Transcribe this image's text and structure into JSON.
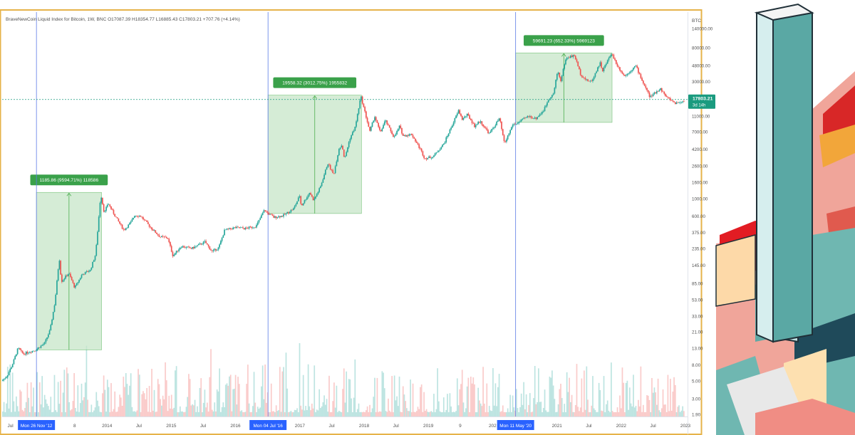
{
  "header": {
    "text": "BraveNewCoin Liquid Index for Bitcoin, 1W, BNC  O17087.39  H18354.77  L16885.43  C17803.21  +707.76 (+4.14%)"
  },
  "price_axis": {
    "currency": "BTC",
    "ticks": [
      "140000.00",
      "80000.00",
      "48000.00",
      "30000.00",
      "11000.00",
      "7000.00",
      "4200.00",
      "2600.00",
      "1600.00",
      "1000.00",
      "600.00",
      "375.00",
      "235.00",
      "145.00",
      "85.00",
      "53.00",
      "33.00",
      "21.00",
      "13.00",
      "8.00",
      "5.00",
      "3.00",
      "1.90"
    ],
    "last_price": "17803.21",
    "countdown": "3d 14h"
  },
  "time_axis": {
    "labels": [
      "Jul",
      "8",
      "2014",
      "Jul",
      "2015",
      "Jul",
      "2016",
      "2017",
      "Jul",
      "2018",
      "Jul",
      "2019",
      "9",
      "202",
      "2021",
      "Jul",
      "2022",
      "Jul",
      "2023"
    ],
    "highlights": [
      "Mon 26 Nov '12",
      "Mon 04 Jul '16",
      "Mon 11 May '20"
    ]
  },
  "measurements": [
    {
      "label": "1185.86 (9594.71%) 118586",
      "from": 12.36,
      "to": 1198.22
    },
    {
      "label": "19558.32 (3012.75%) 1955832",
      "from": 649.18,
      "to": 20207.5
    },
    {
      "label": "59691.23 (652.33%) 5969123",
      "from": 9150.49,
      "to": 68841.72
    }
  ],
  "colors": {
    "up": "#26a69a",
    "down": "#ef5350",
    "measure_fill": "#c8e6c9",
    "measure_stroke": "#4caf50",
    "halving_line": "#5b7be6",
    "highlight_bg": "#2962ff",
    "frame": "#e6b34a",
    "last_price_bg": "#1a9b7f"
  },
  "chart_data": {
    "type": "candlestick",
    "title": "BraveNewCoin Liquid Index for Bitcoin, 1W, BNC",
    "y_scale": "log",
    "ylim": [
      1.9,
      140000
    ],
    "x_range": [
      "2012-05-15",
      "2023-01-01"
    ],
    "last_bar": {
      "open": 17087.39,
      "high": 18354.77,
      "low": 16885.43,
      "close": 17803.21,
      "change": 707.76,
      "change_pct": 4.14
    },
    "price_path": [
      [
        "2012-05-15",
        5.0
      ],
      [
        "2012-06-15",
        5.8
      ],
      [
        "2012-07-15",
        8.0
      ],
      [
        "2012-08-17",
        13.0
      ],
      [
        "2012-09-15",
        11.0
      ],
      [
        "2012-11-26",
        12.4
      ],
      [
        "2013-01-15",
        15.0
      ],
      [
        "2013-02-15",
        22.0
      ],
      [
        "2013-03-15",
        50.0
      ],
      [
        "2013-04-08",
        180.0
      ],
      [
        "2013-04-20",
        90.0
      ],
      [
        "2013-06-01",
        115.0
      ],
      [
        "2013-07-05",
        75.0
      ],
      [
        "2013-08-15",
        110.0
      ],
      [
        "2013-10-01",
        125.0
      ],
      [
        "2013-11-01",
        200.0
      ],
      [
        "2013-11-30",
        1150.0
      ],
      [
        "2013-12-20",
        650.0
      ],
      [
        "2014-01-10",
        880.0
      ],
      [
        "2014-02-20",
        600.0
      ],
      [
        "2014-04-10",
        400.0
      ],
      [
        "2014-05-20",
        500.0
      ],
      [
        "2014-06-10",
        620.0
      ],
      [
        "2014-07-15",
        600.0
      ],
      [
        "2014-09-15",
        420.0
      ],
      [
        "2014-11-01",
        330.0
      ],
      [
        "2014-12-15",
        320.0
      ],
      [
        "2015-01-14",
        190.0
      ],
      [
        "2015-03-01",
        250.0
      ],
      [
        "2015-05-01",
        235.0
      ],
      [
        "2015-07-15",
        285.0
      ],
      [
        "2015-08-24",
        215.0
      ],
      [
        "2015-10-01",
        240.0
      ],
      [
        "2015-11-04",
        400.0
      ],
      [
        "2016-01-01",
        430.0
      ],
      [
        "2016-03-01",
        420.0
      ],
      [
        "2016-05-01",
        450.0
      ],
      [
        "2016-06-17",
        720.0
      ],
      [
        "2016-07-04",
        660.0
      ],
      [
        "2016-08-10",
        580.0
      ],
      [
        "2016-10-01",
        610.0
      ],
      [
        "2016-12-01",
        750.0
      ],
      [
        "2017-01-04",
        1100.0
      ],
      [
        "2017-01-12",
        800.0
      ],
      [
        "2017-03-01",
        1200.0
      ],
      [
        "2017-03-24",
        950.0
      ],
      [
        "2017-05-01",
        1400.0
      ],
      [
        "2017-06-12",
        2800.0
      ],
      [
        "2017-07-15",
        2000.0
      ],
      [
        "2017-08-15",
        4300.0
      ],
      [
        "2017-09-01",
        4800.0
      ],
      [
        "2017-09-15",
        3100.0
      ],
      [
        "2017-10-15",
        5700.0
      ],
      [
        "2017-11-15",
        8000.0
      ],
      [
        "2017-12-17",
        19600.0
      ],
      [
        "2018-02-06",
        7000.0
      ],
      [
        "2018-03-05",
        11000.0
      ],
      [
        "2018-04-06",
        6800.0
      ],
      [
        "2018-05-05",
        9700.0
      ],
      [
        "2018-06-24",
        5900.0
      ],
      [
        "2018-07-25",
        8200.0
      ],
      [
        "2018-08-14",
        6200.0
      ],
      [
        "2018-10-01",
        6500.0
      ],
      [
        "2018-11-20",
        4200.0
      ],
      [
        "2018-12-15",
        3200.0
      ],
      [
        "2019-02-01",
        3400.0
      ],
      [
        "2019-04-02",
        4900.0
      ],
      [
        "2019-05-15",
        8000.0
      ],
      [
        "2019-06-26",
        13000.0
      ],
      [
        "2019-07-15",
        10000.0
      ],
      [
        "2019-08-15",
        11500.0
      ],
      [
        "2019-09-24",
        8200.0
      ],
      [
        "2019-10-25",
        9500.0
      ],
      [
        "2019-12-17",
        6600.0
      ],
      [
        "2020-02-13",
        10300.0
      ],
      [
        "2020-03-12",
        4900.0
      ],
      [
        "2020-04-30",
        8800.0
      ],
      [
        "2020-05-11",
        8600.0
      ],
      [
        "2020-07-27",
        11000.0
      ],
      [
        "2020-09-05",
        10200.0
      ],
      [
        "2020-10-21",
        13000.0
      ],
      [
        "2020-11-20",
        18500.0
      ],
      [
        "2020-12-16",
        21000.0
      ],
      [
        "2021-01-08",
        41000.0
      ],
      [
        "2021-01-27",
        30500.0
      ],
      [
        "2021-02-21",
        57000.0
      ],
      [
        "2021-03-13",
        61000.0
      ],
      [
        "2021-04-14",
        64000.0
      ],
      [
        "2021-05-19",
        37000.0
      ],
      [
        "2021-06-22",
        31000.0
      ],
      [
        "2021-07-20",
        30000.0
      ],
      [
        "2021-09-06",
        52000.0
      ],
      [
        "2021-09-21",
        41000.0
      ],
      [
        "2021-11-10",
        68800.0
      ],
      [
        "2021-12-15",
        47000.0
      ],
      [
        "2022-01-24",
        35000.0
      ],
      [
        "2022-03-28",
        47500.0
      ],
      [
        "2022-05-12",
        28000.0
      ],
      [
        "2022-06-18",
        19000.0
      ],
      [
        "2022-08-14",
        24500.0
      ],
      [
        "2022-09-20",
        19000.0
      ],
      [
        "2022-11-09",
        16000.0
      ],
      [
        "2022-12-20",
        16800.0
      ]
    ]
  }
}
